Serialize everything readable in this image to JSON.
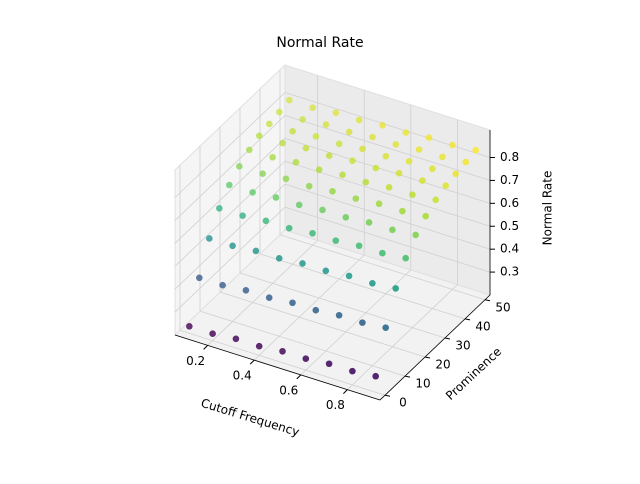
{
  "chart_data": {
    "type": "scatter3d",
    "title": "Normal Rate",
    "xlabel": "Cutoff Frequency",
    "ylabel": "Prominence",
    "zlabel": "Normal Rate",
    "colormap": "viridis",
    "xlim": [
      0.06,
      0.94
    ],
    "xticks": [
      0.2,
      0.4,
      0.6,
      0.8
    ],
    "ylim": [
      -2.5,
      52.5
    ],
    "yticks": [
      0,
      10,
      20,
      30,
      40,
      50
    ],
    "zlim": [
      0.2,
      0.92
    ],
    "zticks": [
      0.3,
      0.4,
      0.5,
      0.6,
      0.7,
      0.8
    ],
    "x": [
      0.1,
      0.1,
      0.1,
      0.1,
      0.1,
      0.1,
      0.1,
      0.1,
      0.1,
      0.1,
      0.1,
      0.2,
      0.2,
      0.2,
      0.2,
      0.2,
      0.2,
      0.2,
      0.2,
      0.2,
      0.2,
      0.2,
      0.3,
      0.3,
      0.3,
      0.3,
      0.3,
      0.3,
      0.3,
      0.3,
      0.3,
      0.3,
      0.3,
      0.4,
      0.4,
      0.4,
      0.4,
      0.4,
      0.4,
      0.4,
      0.4,
      0.4,
      0.4,
      0.4,
      0.5,
      0.5,
      0.5,
      0.5,
      0.5,
      0.5,
      0.5,
      0.5,
      0.5,
      0.5,
      0.5,
      0.6,
      0.6,
      0.6,
      0.6,
      0.6,
      0.6,
      0.6,
      0.6,
      0.6,
      0.6,
      0.6,
      0.7,
      0.7,
      0.7,
      0.7,
      0.7,
      0.7,
      0.7,
      0.7,
      0.7,
      0.7,
      0.7,
      0.8,
      0.8,
      0.8,
      0.8,
      0.8,
      0.8,
      0.8,
      0.8,
      0.8,
      0.8,
      0.8,
      0.9,
      0.9,
      0.9,
      0.9,
      0.9,
      0.9,
      0.9,
      0.9,
      0.9,
      0.9,
      0.9
    ],
    "y": [
      0,
      5,
      10,
      15,
      20,
      25,
      30,
      35,
      40,
      45,
      50,
      0,
      5,
      10,
      15,
      20,
      25,
      30,
      35,
      40,
      45,
      50,
      0,
      5,
      10,
      15,
      20,
      25,
      30,
      35,
      40,
      45,
      50,
      0,
      5,
      10,
      15,
      20,
      25,
      30,
      35,
      40,
      45,
      50,
      0,
      5,
      10,
      15,
      20,
      25,
      30,
      35,
      40,
      45,
      50,
      0,
      5,
      10,
      15,
      20,
      25,
      30,
      35,
      40,
      45,
      50,
      0,
      5,
      10,
      15,
      20,
      25,
      30,
      35,
      40,
      45,
      50,
      0,
      5,
      10,
      15,
      20,
      25,
      30,
      35,
      40,
      45,
      50,
      0,
      5,
      10,
      15,
      20,
      25,
      30,
      35,
      40,
      45,
      50
    ],
    "z": [
      0.23,
      0.4,
      0.53,
      0.62,
      0.68,
      0.72,
      0.75,
      0.77,
      0.78,
      0.79,
      0.8,
      0.23,
      0.4,
      0.53,
      0.62,
      0.68,
      0.72,
      0.75,
      0.77,
      0.78,
      0.79,
      0.8,
      0.24,
      0.41,
      0.54,
      0.63,
      0.69,
      0.73,
      0.76,
      0.78,
      0.79,
      0.8,
      0.81,
      0.24,
      0.41,
      0.54,
      0.63,
      0.69,
      0.73,
      0.76,
      0.78,
      0.79,
      0.8,
      0.81,
      0.25,
      0.42,
      0.55,
      0.64,
      0.7,
      0.74,
      0.77,
      0.79,
      0.8,
      0.81,
      0.82,
      0.25,
      0.42,
      0.55,
      0.64,
      0.7,
      0.74,
      0.77,
      0.79,
      0.8,
      0.81,
      0.82,
      0.26,
      0.43,
      0.56,
      0.65,
      0.71,
      0.75,
      0.78,
      0.8,
      0.81,
      0.82,
      0.83,
      0.26,
      0.43,
      0.56,
      0.65,
      0.71,
      0.75,
      0.78,
      0.8,
      0.81,
      0.82,
      0.83,
      0.27,
      0.44,
      0.57,
      0.66,
      0.72,
      0.76,
      0.79,
      0.81,
      0.82,
      0.83,
      0.84
    ]
  }
}
